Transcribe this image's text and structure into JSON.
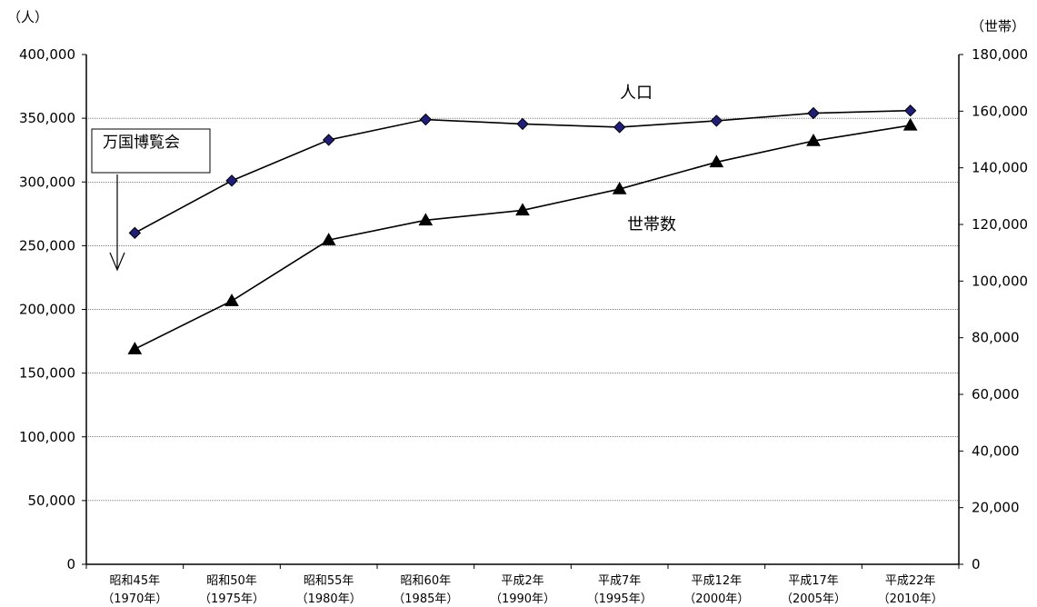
{
  "chart_data": {
    "type": "line",
    "categories": [
      [
        "昭和45年",
        "（1970年）"
      ],
      [
        "昭和50年",
        "（1975年）"
      ],
      [
        "昭和55年",
        "（1980年）"
      ],
      [
        "昭和60年",
        "（1985年）"
      ],
      [
        "平成2年",
        "（1990年）"
      ],
      [
        "平成7年",
        "（1995年）"
      ],
      [
        "平成12年",
        "（2000年）"
      ],
      [
        "平成17年",
        "（2005年）"
      ],
      [
        "平成22年",
        "（2010年）"
      ]
    ],
    "left_axis": {
      "unit": "（人）",
      "ylim": [
        0,
        400000
      ],
      "ticks": [
        "0",
        "50,000",
        "100,000",
        "150,000",
        "200,000",
        "250,000",
        "300,000",
        "350,000",
        "400,000"
      ]
    },
    "right_axis": {
      "unit": "（世帯）",
      "ylim": [
        0,
        180000
      ],
      "ticks": [
        "0",
        "20,000",
        "40,000",
        "60,000",
        "80,000",
        "100,000",
        "120,000",
        "140,000",
        "160,000",
        "180,000"
      ]
    },
    "grid": true,
    "series": [
      {
        "name": "人口",
        "axis": "left",
        "marker": "diamond",
        "marker_color": "#1f1f7a",
        "values": [
          260000,
          301000,
          333000,
          349000,
          345500,
          343000,
          348000,
          354000,
          356000
        ]
      },
      {
        "name": "世帯数",
        "axis": "right",
        "marker": "triangle",
        "marker_color": "#000000",
        "values": [
          76000,
          93000,
          114500,
          121500,
          125000,
          132500,
          142000,
          149500,
          155000
        ]
      }
    ],
    "annotations": [
      {
        "text": "万国博覧会",
        "points_to": "昭和45年"
      }
    ]
  }
}
